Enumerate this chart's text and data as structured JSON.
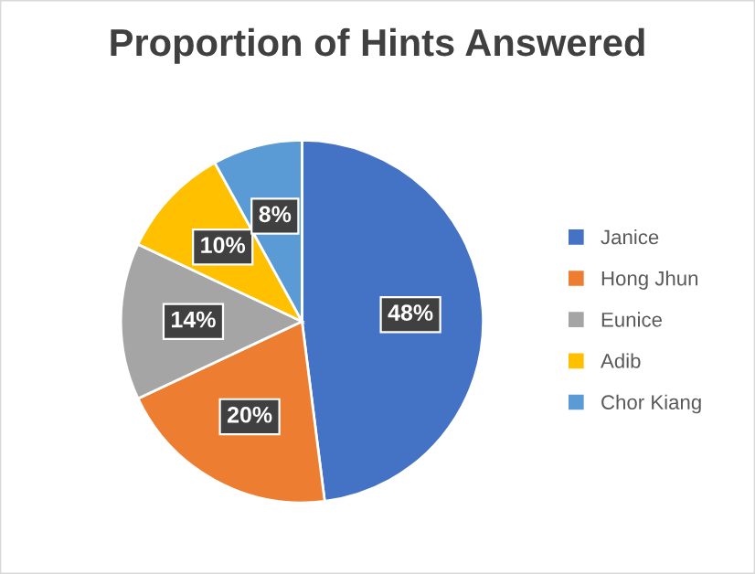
{
  "chart_data": {
    "type": "pie",
    "title": "Proportion of Hints Answered",
    "categories": [
      "Janice",
      "Hong Jhun",
      "Eunice",
      "Adib",
      "Chor Kiang"
    ],
    "values": [
      48,
      20,
      14,
      10,
      8
    ],
    "colors": [
      "#4472c4",
      "#ed7d31",
      "#a5a5a5",
      "#ffc000",
      "#5b9bd5"
    ],
    "value_labels": [
      "48%",
      "20%",
      "14%",
      "10%",
      "8%"
    ],
    "legend": "right"
  }
}
